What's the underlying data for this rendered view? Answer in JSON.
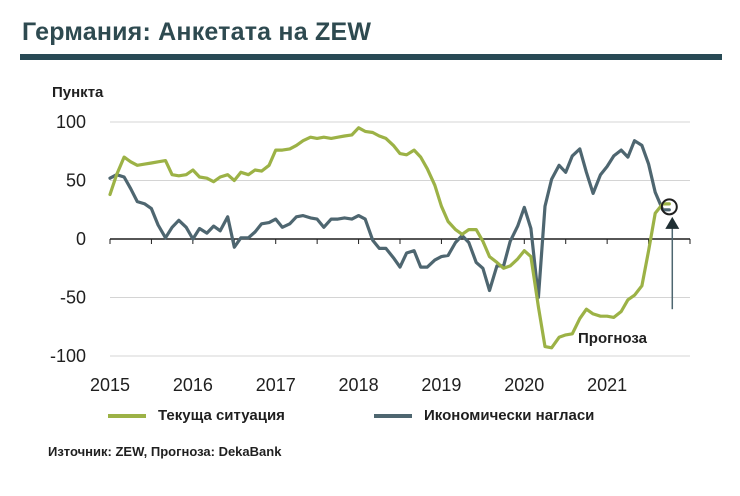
{
  "title": "Германия: Анкетата на ZEW",
  "colors": {
    "accent": "#284a55",
    "current": "#9cb246",
    "expectations": "#4e6670"
  },
  "source": "Източник: ZEW, Прогноза: DekaBank",
  "forecast_label": "Прогноза",
  "chart_data": {
    "type": "line",
    "title": "Германия: Анкетата на ZEW",
    "ylabel": "Пункта",
    "xlabel": "",
    "ylim": [
      -100,
      100
    ],
    "yticks": [
      100,
      50,
      0,
      -50,
      -100
    ],
    "ytick_labels": [
      "100",
      "50",
      "0",
      "-50",
      "-100"
    ],
    "xlim": [
      2015.0,
      2022.0
    ],
    "xticks": [
      2015,
      2016,
      2017,
      2018,
      2019,
      2020,
      2021
    ],
    "xtick_labels": [
      "2015",
      "2016",
      "2017",
      "2018",
      "2019",
      "2020",
      "2021"
    ],
    "grid": true,
    "legend": "bottom",
    "series": [
      {
        "name": "Текуща ситуация",
        "x": [
          2015.0,
          2015.08,
          2015.17,
          2015.25,
          2015.33,
          2015.42,
          2015.5,
          2015.58,
          2015.67,
          2015.75,
          2015.83,
          2015.92,
          2016.0,
          2016.08,
          2016.17,
          2016.25,
          2016.33,
          2016.42,
          2016.5,
          2016.58,
          2016.67,
          2016.75,
          2016.83,
          2016.92,
          2017.0,
          2017.08,
          2017.17,
          2017.25,
          2017.33,
          2017.42,
          2017.5,
          2017.58,
          2017.67,
          2017.75,
          2017.83,
          2017.92,
          2018.0,
          2018.08,
          2018.17,
          2018.25,
          2018.33,
          2018.42,
          2018.5,
          2018.58,
          2018.67,
          2018.75,
          2018.83,
          2018.92,
          2019.0,
          2019.08,
          2019.17,
          2019.25,
          2019.33,
          2019.42,
          2019.5,
          2019.58,
          2019.67,
          2019.75,
          2019.83,
          2019.92,
          2020.0,
          2020.08,
          2020.17,
          2020.25,
          2020.33,
          2020.42,
          2020.5,
          2020.58,
          2020.67,
          2020.75,
          2020.83,
          2020.92,
          2021.0,
          2021.08,
          2021.17,
          2021.25,
          2021.33,
          2021.42,
          2021.5,
          2021.58,
          2021.67,
          2021.75
        ],
        "values": [
          38,
          55,
          70,
          66,
          63,
          64,
          65,
          66,
          67,
          55,
          54,
          55,
          59,
          53,
          52,
          49,
          53,
          55,
          50,
          57,
          55,
          59,
          58,
          63,
          76,
          76,
          77,
          80,
          84,
          87,
          86,
          87,
          86,
          87,
          88,
          89,
          95,
          92,
          91,
          88,
          86,
          80,
          73,
          72,
          76,
          70,
          60,
          46,
          28,
          15,
          8,
          4,
          8,
          8,
          -2,
          -15,
          -20,
          -25,
          -23,
          -17,
          -10,
          -15,
          -58,
          -92,
          -93,
          -84,
          -82,
          -81,
          -68,
          -60,
          -64,
          -66,
          -66,
          -67,
          -62,
          -52,
          -48,
          -40,
          -10,
          22,
          30,
          30
        ]
      },
      {
        "name": "Икономически нагласи",
        "x": [
          2015.0,
          2015.08,
          2015.17,
          2015.25,
          2015.33,
          2015.42,
          2015.5,
          2015.58,
          2015.67,
          2015.75,
          2015.83,
          2015.92,
          2016.0,
          2016.08,
          2016.17,
          2016.25,
          2016.33,
          2016.42,
          2016.5,
          2016.58,
          2016.67,
          2016.75,
          2016.83,
          2016.92,
          2017.0,
          2017.08,
          2017.17,
          2017.25,
          2017.33,
          2017.42,
          2017.5,
          2017.58,
          2017.67,
          2017.75,
          2017.83,
          2017.92,
          2018.0,
          2018.08,
          2018.17,
          2018.25,
          2018.33,
          2018.42,
          2018.5,
          2018.58,
          2018.67,
          2018.75,
          2018.83,
          2018.92,
          2019.0,
          2019.08,
          2019.17,
          2019.25,
          2019.33,
          2019.42,
          2019.5,
          2019.58,
          2019.67,
          2019.75,
          2019.83,
          2019.92,
          2020.0,
          2020.08,
          2020.17,
          2020.25,
          2020.33,
          2020.42,
          2020.5,
          2020.58,
          2020.67,
          2020.75,
          2020.83,
          2020.92,
          2021.0,
          2021.08,
          2021.17,
          2021.25,
          2021.33,
          2021.42,
          2021.5,
          2021.58,
          2021.67,
          2021.75
        ],
        "values": [
          52,
          55,
          53,
          43,
          32,
          30,
          26,
          12,
          1,
          10,
          16,
          10,
          0,
          9,
          5,
          11,
          7,
          19,
          -7,
          1,
          1,
          6,
          13,
          14,
          17,
          10,
          13,
          19,
          20,
          18,
          17,
          10,
          17,
          17,
          18,
          17,
          20,
          17,
          -1,
          -8,
          -8,
          -16,
          -24,
          -12,
          -10,
          -24,
          -24,
          -18,
          -15,
          -14,
          -3,
          3,
          -3,
          -20,
          -25,
          -44,
          -23,
          -23,
          -2,
          11,
          27,
          9,
          -50,
          28,
          51,
          63,
          57,
          71,
          77,
          57,
          39,
          55,
          62,
          71,
          76,
          70,
          84,
          80,
          64,
          40,
          25,
          25
        ]
      }
    ]
  }
}
